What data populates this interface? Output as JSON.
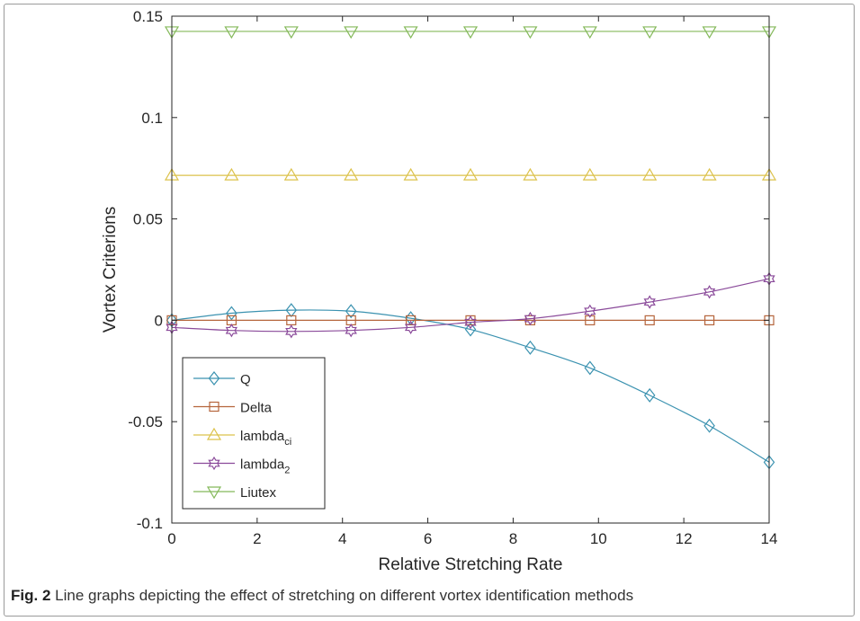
{
  "caption": {
    "label": "Fig. 2",
    "text": " Line graphs depicting the effect of stretching on different vortex identification methods"
  },
  "chart_data": {
    "type": "line",
    "title": "",
    "xlabel": "Relative Stretching Rate",
    "ylabel": "Vortex Criterions",
    "xlim": [
      0,
      14
    ],
    "ylim": [
      -0.1,
      0.15
    ],
    "xticks": [
      "0",
      "2",
      "4",
      "6",
      "8",
      "10",
      "12",
      "14"
    ],
    "yticks": [
      "-0.1",
      "-0.05",
      "0",
      "0.05",
      "0.1",
      "0.15"
    ],
    "grid": false,
    "legend_position": "bottom-left",
    "x": [
      0,
      1.4,
      2.8,
      4.2,
      5.6,
      7,
      8.4,
      9.8,
      11.2,
      12.6,
      14
    ],
    "series": [
      {
        "name": "Q",
        "name_sub": "",
        "marker": "diamond",
        "color": "#3b92b0",
        "values": [
          0,
          0.0035,
          0.005,
          0.0045,
          0.001,
          -0.0045,
          -0.0135,
          -0.0235,
          -0.037,
          -0.052,
          -0.07
        ]
      },
      {
        "name": "Delta",
        "name_sub": "",
        "marker": "square",
        "color": "#b5653c",
        "values": [
          0,
          0,
          0,
          0,
          0,
          0,
          0,
          0,
          0,
          0,
          0
        ]
      },
      {
        "name": "lambda",
        "name_sub": "ci",
        "marker": "triangle-up",
        "color": "#dcc24a",
        "values": [
          0.0715,
          0.0715,
          0.0715,
          0.0715,
          0.0715,
          0.0715,
          0.0715,
          0.0715,
          0.0715,
          0.0715,
          0.0715
        ]
      },
      {
        "name": "lambda",
        "name_sub": "2",
        "marker": "hexagram",
        "color": "#8a4a9a",
        "values": [
          -0.0035,
          -0.005,
          -0.0055,
          -0.005,
          -0.0035,
          -0.001,
          0.0008,
          0.0045,
          0.009,
          0.014,
          0.0205
        ]
      },
      {
        "name": "Liutex",
        "name_sub": "",
        "marker": "triangle-down",
        "color": "#84b95a",
        "values": [
          0.1425,
          0.1425,
          0.1425,
          0.1425,
          0.1425,
          0.1425,
          0.1425,
          0.1425,
          0.1425,
          0.1425,
          0.1425
        ]
      }
    ]
  }
}
